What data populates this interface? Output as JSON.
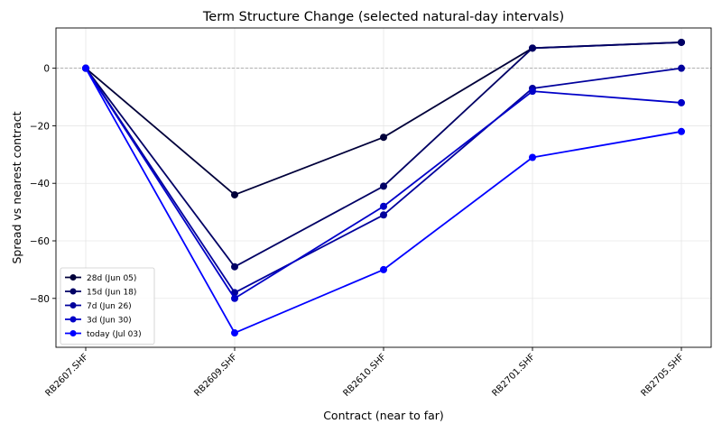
{
  "chart_data": {
    "type": "line",
    "title": "Term Structure Change (selected natural-day intervals)",
    "xlabel": "Contract (near to far)",
    "ylabel": "Spread vs nearest contract",
    "categories": [
      "RB2607.SHF",
      "RB2609.SHF",
      "RB2610.SHF",
      "RB2701.SHF",
      "RB2705.SHF"
    ],
    "ylim": [
      -97,
      14
    ],
    "yticks": [
      0,
      -20,
      -40,
      -60,
      -80
    ],
    "grid": true,
    "zero_line": true,
    "legend_position": "lower-left",
    "series": [
      {
        "name": "28d (Jun 05)",
        "color": "#00003a",
        "values": [
          0,
          -44,
          -24,
          7,
          9
        ]
      },
      {
        "name": "15d (Jun 18)",
        "color": "#000065",
        "values": [
          0,
          -69,
          -41,
          7,
          9
        ]
      },
      {
        "name": "7d (Jun 26)",
        "color": "#00009c",
        "values": [
          0,
          -78,
          -51,
          -7,
          0
        ]
      },
      {
        "name": "3d (Jun 30)",
        "color": "#0000c8",
        "values": [
          0,
          -80,
          -48,
          -8,
          -12
        ]
      },
      {
        "name": "today (Jul 03)",
        "color": "#0000ff",
        "values": [
          0,
          -92,
          -70,
          -31,
          -22
        ]
      }
    ]
  }
}
